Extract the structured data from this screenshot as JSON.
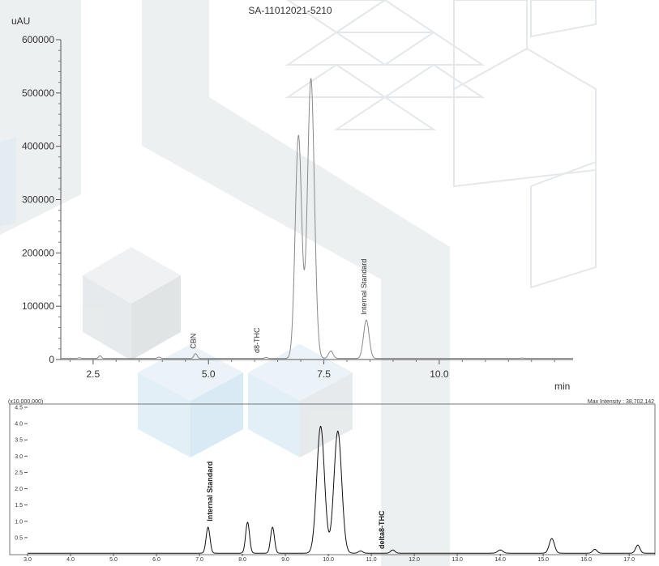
{
  "chart_data": [
    {
      "type": "line",
      "title": "SA-11012021-5210",
      "ylabel": "uAU",
      "xlabel": "min",
      "xlim": [
        1.8,
        12.9
      ],
      "ylim": [
        0,
        600000
      ],
      "x_ticks": [
        2.5,
        5.0,
        7.5,
        10.0
      ],
      "x_tick_labels": [
        "2.5",
        "5.0",
        "7.5",
        "10.0"
      ],
      "y_ticks": [
        0,
        100000,
        200000,
        300000,
        400000,
        500000,
        600000
      ],
      "y_tick_labels": [
        "0",
        "100000",
        "200000",
        "300000",
        "400000",
        "500000",
        "600000"
      ],
      "grid": false,
      "baseline": 2000,
      "peaks": [
        {
          "x": 2.2,
          "height": 1500,
          "width": 0.03
        },
        {
          "x": 2.65,
          "height": 5000,
          "width": 0.03
        },
        {
          "x": 3.93,
          "height": 2500,
          "width": 0.035
        },
        {
          "x": 4.72,
          "height": 9000,
          "width": 0.035
        },
        {
          "x": 6.25,
          "height": 1800,
          "width": 0.035
        },
        {
          "x": 6.95,
          "height": 418000,
          "width": 0.07
        },
        {
          "x": 7.22,
          "height": 525000,
          "width": 0.075
        },
        {
          "x": 7.65,
          "height": 14000,
          "width": 0.05
        },
        {
          "x": 8.42,
          "height": 72000,
          "width": 0.06
        },
        {
          "x": 11.8,
          "height": 800,
          "width": 0.04
        }
      ],
      "annotations": [
        {
          "text": "CBN",
          "x": 4.72,
          "y": 14000
        },
        {
          "text": "d8-THC",
          "x": 6.1,
          "y": 6000
        },
        {
          "text": "Internal Standard",
          "x": 8.42,
          "y": 78000
        }
      ]
    },
    {
      "type": "line",
      "multiplier_label": "(x10,000,000)",
      "max_intensity_label": "Max Intensity : 38,702,142",
      "xlim": [
        3.0,
        17.6
      ],
      "ylim": [
        0,
        4.6
      ],
      "x_ticks": [
        3.0,
        4.0,
        5.0,
        6.0,
        7.0,
        8.0,
        9.0,
        10.0,
        11.0,
        12.0,
        13.0,
        14.0,
        15.0,
        16.0,
        17.0
      ],
      "x_tick_labels": [
        "3.0",
        "4.0",
        "5.0",
        "6.0",
        "7.0",
        "8.0",
        "9.0",
        "10.0",
        "11.0",
        "12.0",
        "13.0",
        "14.0",
        "15.0",
        "16.0",
        "17.0"
      ],
      "y_ticks": [
        0.5,
        1.0,
        1.5,
        2.0,
        2.5,
        3.0,
        3.5,
        4.0,
        4.5
      ],
      "y_tick_labels": [
        "0.5",
        "1.0",
        "1.5",
        "2.0",
        "2.5",
        "3.0",
        "3.5",
        "4.0",
        "4.5"
      ],
      "grid": false,
      "baseline": 0.02,
      "peaks": [
        {
          "x": 7.2,
          "height": 0.8,
          "width": 0.045
        },
        {
          "x": 8.12,
          "height": 0.95,
          "width": 0.045
        },
        {
          "x": 8.7,
          "height": 0.8,
          "width": 0.045
        },
        {
          "x": 9.82,
          "height": 3.9,
          "width": 0.09
        },
        {
          "x": 10.22,
          "height": 3.75,
          "width": 0.09
        },
        {
          "x": 10.75,
          "height": 0.07,
          "width": 0.05
        },
        {
          "x": 11.5,
          "height": 0.1,
          "width": 0.05
        },
        {
          "x": 14.0,
          "height": 0.1,
          "width": 0.06
        },
        {
          "x": 15.2,
          "height": 0.45,
          "width": 0.06
        },
        {
          "x": 16.2,
          "height": 0.12,
          "width": 0.05
        },
        {
          "x": 17.2,
          "height": 0.25,
          "width": 0.05
        }
      ],
      "annotations": [
        {
          "text": "Internal Standard",
          "x": 7.3,
          "y": 0.9,
          "bold": true
        },
        {
          "text": "delta8-THC",
          "x": 11.3,
          "y": 0.05,
          "bold": true
        }
      ]
    }
  ]
}
